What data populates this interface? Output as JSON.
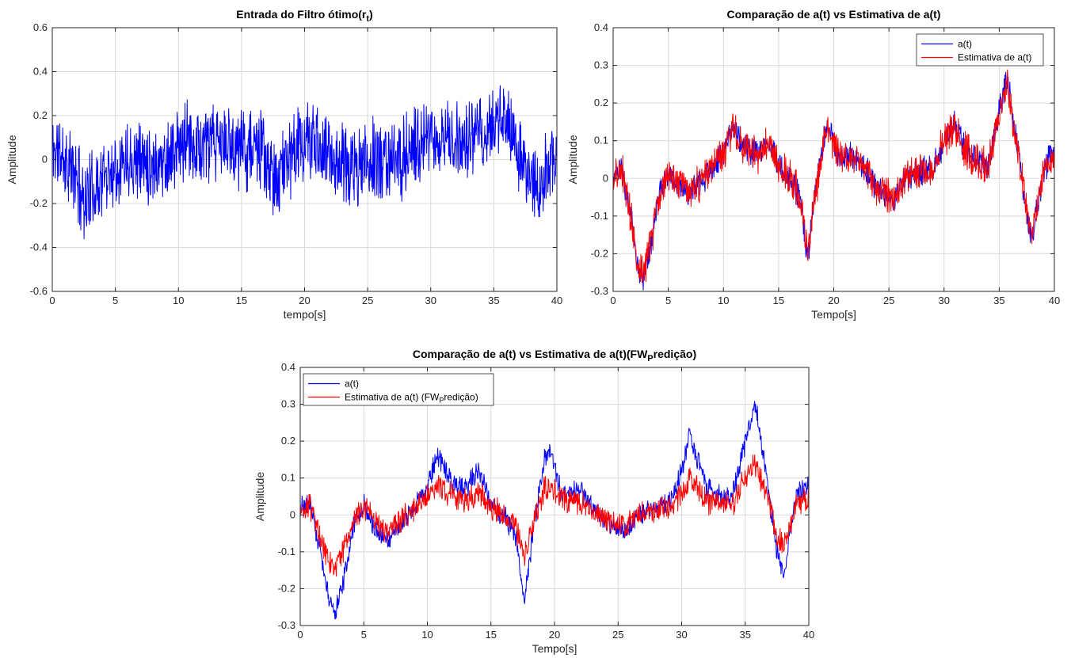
{
  "colors": {
    "series_blue": "#0000ff",
    "series_red": "#ff0000",
    "grid": "#d9d9d9",
    "axis": "#262626"
  },
  "chart_data": [
    {
      "type": "line",
      "title_main": "Entrada do Filtro ótimo(r",
      "title_sub": "t",
      "title_end": ")",
      "xlabel": "tempo[s]",
      "ylabel": "Amplitude",
      "xlim": [
        0,
        40
      ],
      "ylim": [
        -0.6,
        0.6
      ],
      "xticks": [
        0,
        5,
        10,
        15,
        20,
        25,
        30,
        35,
        40
      ],
      "yticks": [
        -0.6,
        -0.4,
        -0.2,
        0,
        0.2,
        0.4,
        0.6
      ],
      "grid": true,
      "legend": null,
      "series": [
        {
          "color": "#0000ff",
          "noise": 0.15,
          "n": 1400,
          "seed": 11,
          "x": [
            0,
            1,
            2,
            2.6,
            3.5,
            4.5,
            5.5,
            6.5,
            8,
            9.5,
            10.5,
            12,
            13.5,
            15,
            16.5,
            17.6,
            18.5,
            19.5,
            20.5,
            22,
            24,
            25.5,
            27,
            28.5,
            30,
            31.5,
            33,
            34.5,
            35.5,
            36.5,
            37.5,
            38.5,
            39.5,
            40
          ],
          "y": [
            0.05,
            0,
            -0.1,
            -0.18,
            -0.12,
            -0.05,
            0,
            0.02,
            -0.02,
            0.02,
            0.08,
            0.06,
            0.07,
            0.06,
            0.05,
            -0.12,
            0.0,
            0.05,
            0.08,
            0.02,
            -0.05,
            0.0,
            -0.02,
            0.05,
            0.08,
            0.1,
            0.08,
            0.12,
            0.2,
            0.1,
            -0.05,
            -0.15,
            0.0,
            0.05
          ]
        }
      ]
    },
    {
      "type": "line",
      "title_main": "Comparação de a(t) vs Estimativa de a(t)",
      "title_sub": "",
      "title_end": "",
      "xlabel": "Tempo[s]",
      "ylabel": "Amplitude",
      "xlim": [
        0,
        40
      ],
      "ylim": [
        -0.3,
        0.4
      ],
      "xticks": [
        0,
        5,
        10,
        15,
        20,
        25,
        30,
        35,
        40
      ],
      "yticks": [
        -0.3,
        -0.2,
        -0.1,
        0,
        0.1,
        0.2,
        0.3,
        0.4
      ],
      "grid": true,
      "legend": "top-right",
      "series": [
        {
          "name": "a(t)",
          "color": "#0000ff",
          "noise": 0.03,
          "n": 1100,
          "seed": 23,
          "x": [
            0,
            0.8,
            1.5,
            2.2,
            2.7,
            3.4,
            4.2,
            5,
            6,
            7,
            8.5,
            10,
            10.8,
            12,
            13,
            14,
            15,
            16,
            17,
            17.6,
            18.3,
            19.2,
            19.6,
            20.5,
            22,
            23,
            24,
            25.5,
            26.5,
            28,
            29,
            30,
            31,
            32,
            33,
            34,
            35,
            35.7,
            36.5,
            37.5,
            38,
            39,
            40
          ],
          "y": [
            0,
            0.02,
            -0.08,
            -0.22,
            -0.27,
            -0.18,
            -0.04,
            0.02,
            -0.02,
            -0.04,
            0.01,
            0.07,
            0.14,
            0.08,
            0.06,
            0.1,
            0.03,
            0.0,
            -0.05,
            -0.22,
            -0.05,
            0.12,
            0.14,
            0.05,
            0.06,
            0.02,
            -0.03,
            -0.05,
            0.0,
            0.02,
            0.03,
            0.1,
            0.15,
            0.07,
            0.05,
            0.03,
            0.18,
            0.27,
            0.12,
            -0.1,
            -0.16,
            0.02,
            0.08
          ]
        },
        {
          "name": "Estimativa de a(t)",
          "color": "#ff0000",
          "noise": 0.04,
          "n": 1100,
          "seed": 37,
          "x": [
            0,
            0.8,
            1.5,
            2.2,
            2.7,
            3.4,
            4.2,
            5,
            6,
            7,
            8.5,
            10,
            10.8,
            12,
            13,
            14,
            15,
            16,
            17,
            17.6,
            18.3,
            19.2,
            19.6,
            20.5,
            22,
            23,
            24,
            25.5,
            26.5,
            28,
            29,
            30,
            31,
            32,
            33,
            34,
            35,
            35.7,
            36.5,
            37.5,
            38,
            39,
            40
          ],
          "y": [
            0,
            0.02,
            -0.08,
            -0.21,
            -0.26,
            -0.17,
            -0.04,
            0.02,
            -0.02,
            -0.04,
            0.01,
            0.07,
            0.13,
            0.08,
            0.06,
            0.1,
            0.03,
            0.0,
            -0.05,
            -0.2,
            -0.05,
            0.11,
            0.13,
            0.05,
            0.06,
            0.02,
            -0.03,
            -0.05,
            0.0,
            0.02,
            0.03,
            0.1,
            0.14,
            0.07,
            0.05,
            0.03,
            0.17,
            0.25,
            0.11,
            -0.09,
            -0.15,
            0.02,
            0.07
          ]
        }
      ]
    },
    {
      "type": "line",
      "title_main": "Comparação de a(t) vs Estimativa de a(t)(FW",
      "title_sub": "P",
      "title_end": "redição)",
      "xlabel": "Tempo[s]",
      "ylabel": "Amplitude",
      "xlim": [
        0,
        40
      ],
      "ylim": [
        -0.3,
        0.4
      ],
      "xticks": [
        0,
        5,
        10,
        15,
        20,
        25,
        30,
        35,
        40
      ],
      "yticks": [
        -0.3,
        -0.2,
        -0.1,
        0,
        0.1,
        0.2,
        0.3,
        0.4
      ],
      "grid": true,
      "legend": "top-left",
      "series": [
        {
          "name": "a(t)",
          "name_main": "a(t)",
          "name_sub": "",
          "name_end": "",
          "color": "#0000ff",
          "noise": 0.025,
          "n": 1100,
          "seed": 51,
          "x": [
            0,
            0.8,
            1.5,
            2.2,
            2.7,
            3.4,
            4.2,
            5,
            6,
            7,
            8.5,
            10,
            10.8,
            12,
            13,
            14,
            15,
            16,
            17,
            17.6,
            18.3,
            19.2,
            19.6,
            20.5,
            22,
            23,
            24,
            25.5,
            26.5,
            28,
            29,
            30,
            30.6,
            32,
            33,
            34,
            35,
            35.8,
            36.5,
            37.5,
            38,
            39,
            40
          ],
          "y": [
            0.02,
            0.03,
            -0.08,
            -0.22,
            -0.27,
            -0.18,
            -0.02,
            0.03,
            -0.05,
            -0.07,
            0.0,
            0.08,
            0.16,
            0.09,
            0.07,
            0.12,
            0.03,
            0.0,
            -0.06,
            -0.24,
            -0.05,
            0.15,
            0.18,
            0.06,
            0.07,
            0.02,
            -0.02,
            -0.05,
            0.0,
            0.02,
            0.03,
            0.12,
            0.22,
            0.07,
            0.05,
            0.05,
            0.2,
            0.3,
            0.14,
            -0.1,
            -0.16,
            0.05,
            0.08
          ]
        },
        {
          "name": "Estimativa de a(t) (FWPredição)",
          "name_main": "Estimativa de a(t) (FW",
          "name_sub": "P",
          "name_end": "redição)",
          "color": "#ff0000",
          "noise": 0.03,
          "n": 1100,
          "seed": 67,
          "x": [
            0,
            0.8,
            1.5,
            2.2,
            2.7,
            3.4,
            4.2,
            5,
            6,
            7,
            8.5,
            10,
            10.8,
            12,
            13,
            14,
            15,
            16,
            17,
            17.6,
            18.3,
            19.2,
            19.6,
            20.5,
            22,
            23,
            24,
            25.5,
            26.5,
            28,
            29,
            30,
            30.6,
            32,
            33,
            34,
            35,
            35.8,
            36.5,
            37.5,
            38,
            39,
            40
          ],
          "y": [
            0.01,
            0.02,
            -0.05,
            -0.12,
            -0.14,
            -0.1,
            -0.01,
            0.02,
            -0.03,
            -0.04,
            0.0,
            0.05,
            0.08,
            0.05,
            0.04,
            0.06,
            0.02,
            0.0,
            -0.04,
            -0.12,
            -0.03,
            0.07,
            0.09,
            0.04,
            0.04,
            0.01,
            -0.01,
            -0.03,
            0.0,
            0.01,
            0.02,
            0.06,
            0.1,
            0.04,
            0.03,
            0.03,
            0.1,
            0.14,
            0.07,
            -0.06,
            -0.08,
            0.03,
            0.04
          ]
        }
      ]
    }
  ]
}
